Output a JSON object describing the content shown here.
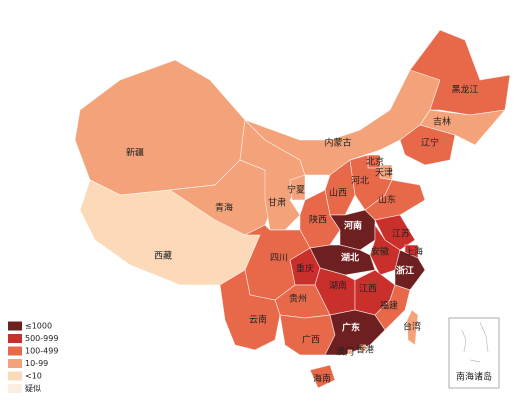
{
  "map": {
    "regions": [
      {
        "name": "新疆",
        "color": "#f4a27a"
      },
      {
        "name": "西藏",
        "color": "#fcd9b8"
      },
      {
        "name": "青海",
        "color": "#f4a27a"
      },
      {
        "name": "甘肃",
        "color": "#f4a27a"
      },
      {
        "name": "宁夏",
        "color": "#f4a27a"
      },
      {
        "name": "内蒙古",
        "color": "#f4a27a"
      },
      {
        "name": "黑龙江",
        "color": "#e8684a"
      },
      {
        "name": "吉林",
        "color": "#f4a27a"
      },
      {
        "name": "辽宁",
        "color": "#e8684a"
      },
      {
        "name": "北京",
        "color": "#e8684a"
      },
      {
        "name": "天津",
        "color": "#f4a27a"
      },
      {
        "name": "河北",
        "color": "#e8684a"
      },
      {
        "name": "山西",
        "color": "#e8684a"
      },
      {
        "name": "山东",
        "color": "#e8684a"
      },
      {
        "name": "陕西",
        "color": "#e8684a"
      },
      {
        "name": "河南",
        "color": "#6e1f1f"
      },
      {
        "name": "江苏",
        "color": "#c9302c"
      },
      {
        "name": "上海",
        "color": "#c9302c"
      },
      {
        "name": "安徽",
        "color": "#c9302c"
      },
      {
        "name": "湖北",
        "color": "#6e1f1f"
      },
      {
        "name": "重庆",
        "color": "#c9302c"
      },
      {
        "name": "四川",
        "color": "#e8684a"
      },
      {
        "name": "浙江",
        "color": "#6e1f1f"
      },
      {
        "name": "湖南",
        "color": "#c9302c"
      },
      {
        "name": "江西",
        "color": "#c9302c"
      },
      {
        "name": "贵州",
        "color": "#e8684a"
      },
      {
        "name": "福建",
        "color": "#e8684a"
      },
      {
        "name": "云南",
        "color": "#e8684a"
      },
      {
        "name": "广西",
        "color": "#e8684a"
      },
      {
        "name": "广东",
        "color": "#6e1f1f"
      },
      {
        "name": "台湾",
        "color": "#f4a27a"
      },
      {
        "name": "香港",
        "color": "#f4a27a"
      },
      {
        "name": "澳门",
        "color": "#f4a27a"
      },
      {
        "name": "海南",
        "color": "#e8684a"
      }
    ],
    "inset_label": "南海诸岛",
    "legend": [
      {
        "label": "≤1000",
        "color": "#6e1f1f"
      },
      {
        "label": "500-999",
        "color": "#c9302c"
      },
      {
        "label": "100-499",
        "color": "#e8684a"
      },
      {
        "label": "10-99",
        "color": "#f4a27a"
      },
      {
        "label": "<10",
        "color": "#fcd9b8"
      },
      {
        "label": "疑似",
        "color": "#fbeee0"
      }
    ]
  }
}
